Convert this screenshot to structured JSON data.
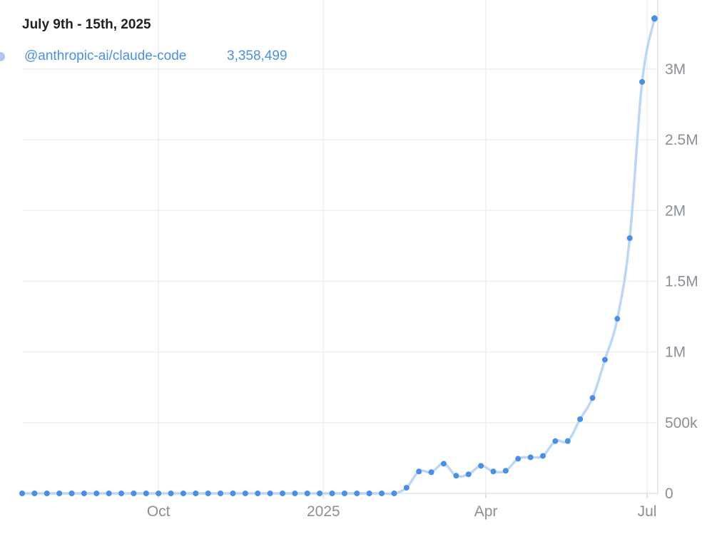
{
  "tooltip": {
    "title": "July 9th - 15th, 2025",
    "series_name": "@anthropic-ai/claude-code",
    "value": "3,358,499"
  },
  "colors": {
    "line": "#bcd6f4",
    "point": "#4a90e2",
    "grid": "#eef0f3",
    "axis_text": "#8a8f98"
  },
  "chart_data": {
    "type": "line",
    "title": "",
    "xlabel": "",
    "ylabel": "",
    "x_unit": "week index (weekly data, ending July 9th - 15th, 2025)",
    "x_ticks": [
      {
        "label": "Oct",
        "x": 11
      },
      {
        "label": "2025",
        "x": 24.3
      },
      {
        "label": "Apr",
        "x": 37.4
      },
      {
        "label": "Jul",
        "x": 50.4
      }
    ],
    "y_ticks": [
      {
        "label": "0",
        "value": 0
      },
      {
        "label": "500k",
        "value": 500000
      },
      {
        "label": "1M",
        "value": 1000000
      },
      {
        "label": "1.5M",
        "value": 1500000
      },
      {
        "label": "2M",
        "value": 2000000
      },
      {
        "label": "2.5M",
        "value": 2500000
      },
      {
        "label": "3M",
        "value": 3000000
      }
    ],
    "ylim": [
      0,
      3400000
    ],
    "xlim": [
      0,
      51.3
    ],
    "grid": true,
    "legend": "none",
    "series": [
      {
        "name": "@anthropic-ai/claude-code",
        "values": [
          0,
          0,
          0,
          0,
          0,
          0,
          0,
          0,
          0,
          0,
          0,
          0,
          0,
          0,
          0,
          0,
          0,
          0,
          0,
          0,
          0,
          0,
          0,
          0,
          0,
          0,
          0,
          0,
          0,
          0,
          0,
          40000,
          155000,
          150000,
          210000,
          125000,
          135000,
          195000,
          155000,
          160000,
          245000,
          255000,
          265000,
          370000,
          370000,
          525000,
          675000,
          945000,
          1235000,
          1805000,
          2910000,
          3358499
        ]
      }
    ]
  }
}
